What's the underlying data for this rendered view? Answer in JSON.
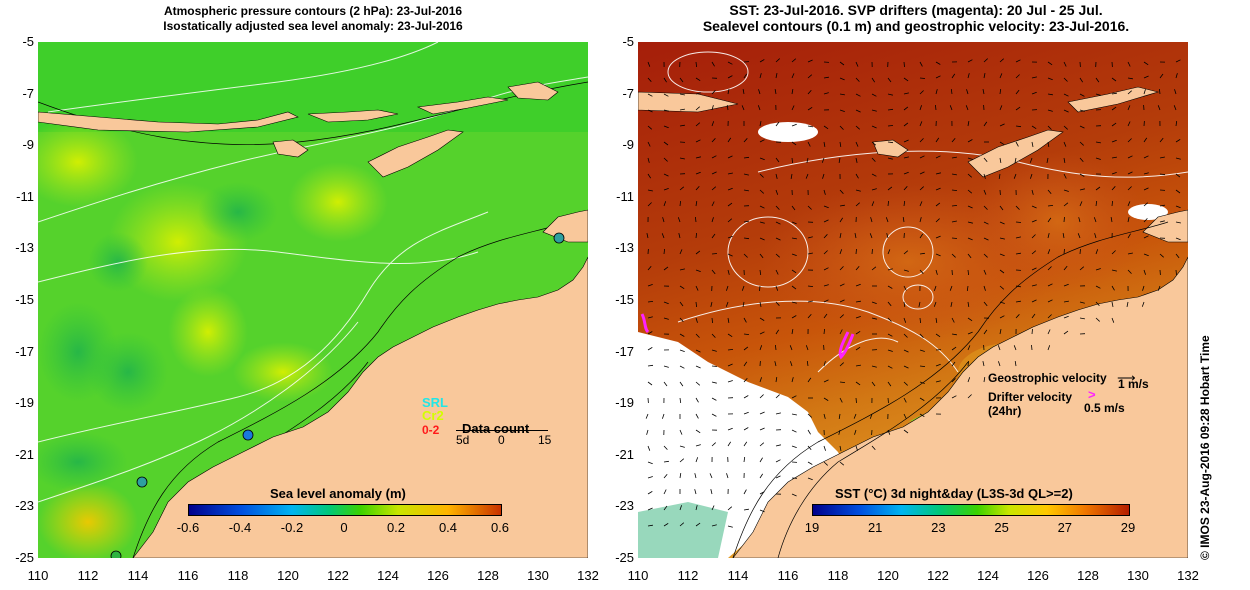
{
  "left_panel": {
    "title_line1": "Atmospheric pressure contours (2 hPa): 23-Jul-2016",
    "title_line2": "Isostatically adjusted sea level anomaly: 23-Jul-2016",
    "legend": {
      "srl": "SRL",
      "cr2": "Cr2",
      "data_count_title": "Data count",
      "data_count_red": "0-2",
      "data_count_5d": "5d",
      "data_count_0": "0",
      "data_count_15": "15"
    },
    "colorbar_title": "Sea level anomaly (m)",
    "colorbar_ticks": [
      "-0.6",
      "-0.4",
      "-0.2",
      "0",
      "0.2",
      "0.4",
      "0.6"
    ],
    "colorbar_range": [
      -0.6,
      0.6
    ]
  },
  "right_panel": {
    "title_line1": "SST: 23-Jul-2016. SVP drifters (magenta): 20 Jul - 25 Jul.",
    "title_line2": "Sealevel contours (0.1 m) and geostrophic velocity: 23-Jul-2016.",
    "geo_velocity_label": "Geostrophic velocity",
    "geo_velocity_scale": "1 m/s",
    "drifter_velocity_label": "Drifter velocity",
    "drifter_velocity_sub": "(24hr)",
    "drifter_velocity_scale": "0.5 m/s",
    "colorbar_title": "SST (°C) 3d night&day (L3S-3d QL>=2)",
    "colorbar_ticks": [
      "19",
      "21",
      "23",
      "25",
      "27",
      "29"
    ],
    "colorbar_range": [
      19,
      29
    ]
  },
  "axes": {
    "lat_ticks": [
      "-5",
      "-7",
      "-9",
      "-11",
      "-13",
      "-15",
      "-17",
      "-19",
      "-21",
      "-23",
      "-25"
    ],
    "lon_ticks": [
      "110",
      "112",
      "114",
      "116",
      "118",
      "120",
      "122",
      "124",
      "126",
      "128",
      "130",
      "132"
    ],
    "lat_range": [
      -25,
      -5
    ],
    "lon_range": [
      110,
      132
    ]
  },
  "credit": "© IMOS 23-Aug-2016 09:28 Hobart Time",
  "colors": {
    "land": "#f9c89b",
    "sla_base": "#55d22c",
    "sst_base": "#b53a0a",
    "drifter": "#ff22ff"
  }
}
